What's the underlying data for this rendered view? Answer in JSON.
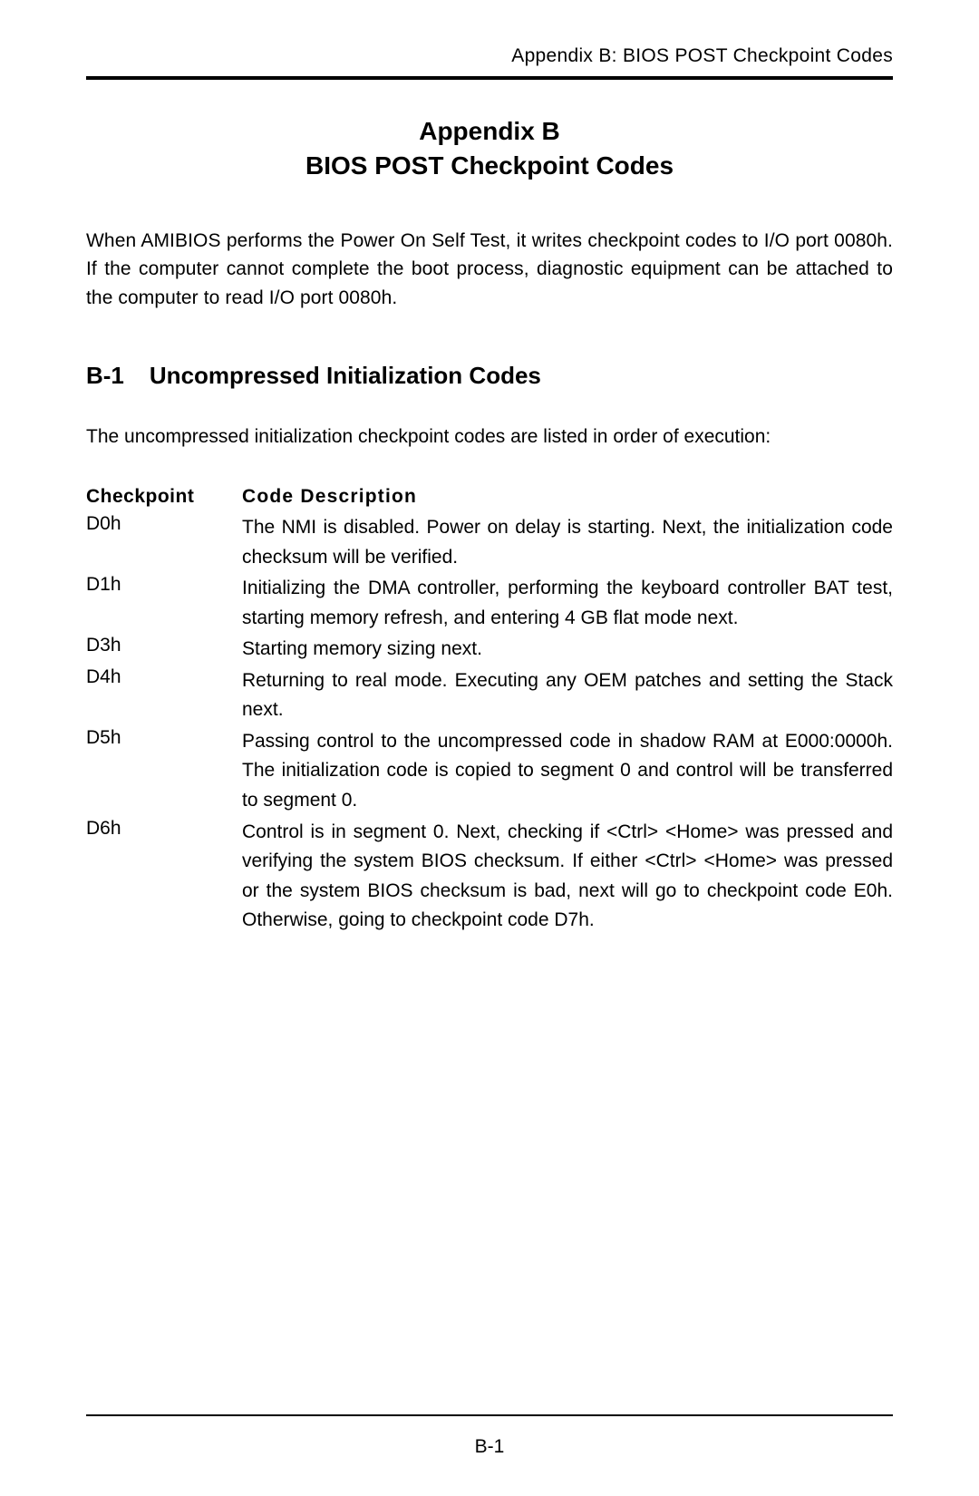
{
  "header": {
    "running_title": "Appendix B: BIOS POST Checkpoint Codes"
  },
  "title": {
    "line1": "Appendix B",
    "line2": "BIOS POST Checkpoint Codes"
  },
  "intro_paragraph": "When AMIBIOS performs the Power On Self Test, it writes  checkpoint codes to I/O port 0080h.  If the computer cannot complete the boot process, diagnostic equipment can be attached to the computer to read I/O port 0080h.",
  "section": {
    "number": "B-1",
    "title": "Uncompressed Initialization Codes",
    "lead_in": "The uncompressed initialization checkpoint codes are listed in order of execution:"
  },
  "table": {
    "col1_header": "Checkpoint",
    "col2_header": "Code  Description",
    "rows": [
      {
        "code": "D0h",
        "desc": "The NMI is disabled. Power on delay is starting. Next, the initialization code checksum will be verified."
      },
      {
        "code": "D1h",
        "desc": "Initializing the DMA controller, performing the keyboard controller BAT test, starting memory refresh, and entering 4 GB flat mode next."
      },
      {
        "code": "D3h",
        "desc": "Starting memory sizing next."
      },
      {
        "code": "D4h",
        "desc": "Returning to real mode. Executing any OEM patches and setting the Stack next."
      },
      {
        "code": "D5h",
        "desc": "Passing control to the uncompressed code in shadow RAM at E000:0000h. The initialization code is copied to segment 0 and control will be transferred to segment 0."
      },
      {
        "code": "D6h",
        "desc": "Control is in segment 0. Next, checking if <Ctrl> <Home> was pressed and verifying the system BIOS checksum. If either <Ctrl> <Home> was pressed or the system BIOS checksum is bad, next will go to checkpoint code E0h.  Otherwise, going to checkpoint code D7h."
      }
    ]
  },
  "footer": {
    "page_number": "B-1"
  }
}
